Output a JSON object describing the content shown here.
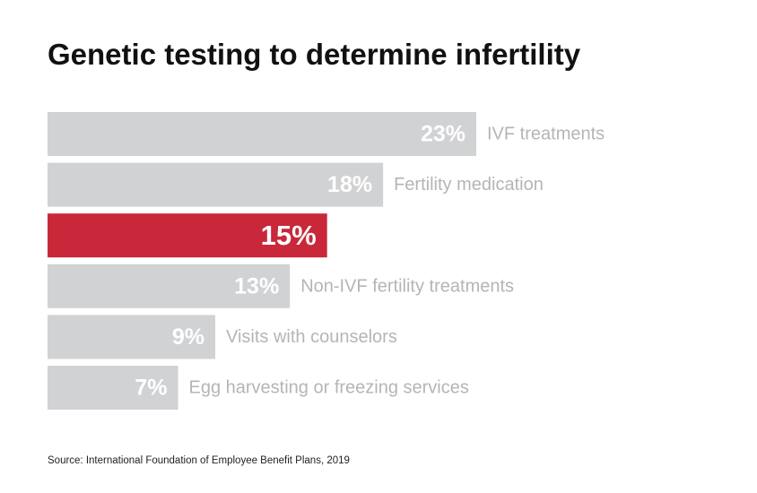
{
  "title": "Genetic testing to determine infertility",
  "source": "Source: International Foundation of Employee Benefit Plans, 2019",
  "colors": {
    "bar_default": "#d1d2d4",
    "bar_highlight": "#c8283a",
    "value_label": "#ffffff",
    "category_label": "#b4b5b8",
    "title": "#111111"
  },
  "chart_data": {
    "type": "bar",
    "orientation": "horizontal",
    "title": "Genetic testing to determine infertility",
    "xlabel": "",
    "ylabel": "",
    "grid": false,
    "legend": "none",
    "unit": "%",
    "categories": [
      "IVF treatments",
      "Fertility medication",
      "",
      "Non-IVF fertility treatments",
      "Visits with counselors",
      "Egg harvesting or freezing services"
    ],
    "values": [
      23,
      18,
      15,
      13,
      9,
      7
    ],
    "value_labels": [
      "23%",
      "18%",
      "15%",
      "13%",
      "9%",
      "7%"
    ],
    "highlight_index": 2,
    "xlim": [
      0,
      23
    ]
  }
}
